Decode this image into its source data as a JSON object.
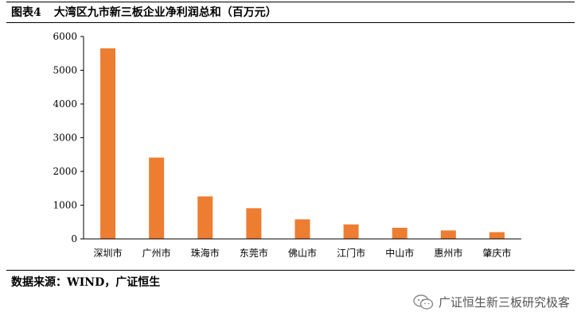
{
  "header": {
    "figure_label": "图表4",
    "title": "大湾区九市新三板企业净利润总和（百万元）"
  },
  "footer": {
    "source": "数据来源：WIND，广证恒生",
    "watermark": "广证恒生新三板研究极客",
    "watermark_icon": "wechat-icon"
  },
  "chart_data": {
    "type": "bar",
    "title": "",
    "xlabel": "",
    "ylabel": "",
    "categories": [
      "深圳市",
      "广州市",
      "珠海市",
      "东莞市",
      "佛山市",
      "江门市",
      "中山市",
      "惠州市",
      "肇庆市"
    ],
    "values": [
      5650,
      2410,
      1260,
      910,
      580,
      430,
      330,
      250,
      200
    ],
    "ylim": [
      0,
      6000
    ],
    "yticks": [
      0,
      1000,
      2000,
      3000,
      4000,
      5000,
      6000
    ],
    "bar_color": "#ED7D31",
    "grid": false,
    "legend": "none"
  }
}
